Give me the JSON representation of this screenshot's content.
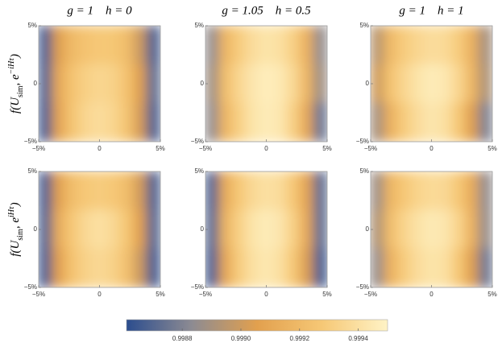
{
  "chart_data": [
    {
      "type": "heatmap",
      "title": "g = 1    h = 0",
      "ylabel": [
        "f(U",
        "sim",
        ", e",
        "−iHτ",
        ")"
      ],
      "xlim": [
        -5,
        5
      ],
      "ylim": [
        -5,
        5
      ],
      "xticks": [
        {
          "value": -5,
          "label": "−5%"
        },
        0,
        {
          "value": 5,
          "label": "5%"
        }
      ],
      "yticks": [
        {
          "value": -5,
          "label": "−5%"
        },
        0,
        {
          "value": 5,
          "label": "5%"
        }
      ],
      "z": [
        [
          0.99866,
          0.99905,
          0.9992,
          0.99925,
          0.99928,
          0.99927,
          0.99922,
          0.999,
          0.99868
        ],
        [
          0.99868,
          0.9991,
          0.99925,
          0.99932,
          0.99935,
          0.99933,
          0.99925,
          0.99905,
          0.99872
        ],
        [
          0.99866,
          0.99908,
          0.99926,
          0.99935,
          0.99938,
          0.99935,
          0.99926,
          0.99903,
          0.99868
        ]
      ]
    },
    {
      "type": "heatmap",
      "title": "g = 1.05    h = 0.5",
      "xlim": [
        -5,
        5
      ],
      "ylim": [
        -5,
        5
      ],
      "xticks": [
        {
          "value": -5,
          "label": "−5%"
        },
        0,
        {
          "value": 5,
          "label": "5%"
        }
      ],
      "yticks": [
        {
          "value": -5,
          "label": "−5%"
        },
        0,
        {
          "value": 5,
          "label": "5%"
        }
      ],
      "z": [
        [
          0.99885,
          0.99918,
          0.9993,
          0.99938,
          0.99942,
          0.9994,
          0.99932,
          0.99915,
          0.99885
        ],
        [
          0.99888,
          0.99922,
          0.99935,
          0.99943,
          0.99947,
          0.99945,
          0.99936,
          0.99918,
          0.99888
        ],
        [
          0.99885,
          0.99918,
          0.99932,
          0.99942,
          0.99946,
          0.99944,
          0.99932,
          0.9991,
          0.99875
        ]
      ]
    },
    {
      "type": "heatmap",
      "title": "g = 1    h = 1",
      "xlim": [
        -5,
        5
      ],
      "ylim": [
        -5,
        5
      ],
      "xticks": [
        {
          "value": -5,
          "label": "−5%"
        },
        0,
        {
          "value": 5,
          "label": "5%"
        }
      ],
      "yticks": [
        {
          "value": -5,
          "label": "−5%"
        },
        0,
        {
          "value": 5,
          "label": "5%"
        }
      ],
      "z": [
        [
          0.99895,
          0.9992,
          0.9993,
          0.99935,
          0.99938,
          0.99937,
          0.9993,
          0.99915,
          0.9989
        ],
        [
          0.999,
          0.99925,
          0.99935,
          0.99942,
          0.99946,
          0.99944,
          0.99935,
          0.99918,
          0.99892
        ],
        [
          0.9989,
          0.99915,
          0.9993,
          0.99938,
          0.99943,
          0.9994,
          0.99928,
          0.99905,
          0.9988
        ]
      ]
    },
    {
      "type": "heatmap",
      "ylabel": [
        "f(U",
        "sim",
        ", e",
        "iHτ",
        ")"
      ],
      "xlim": [
        -5,
        5
      ],
      "ylim": [
        -5,
        5
      ],
      "xticks": [
        {
          "value": -5,
          "label": "−5%"
        },
        0,
        {
          "value": 5,
          "label": "5%"
        }
      ],
      "yticks": [
        {
          "value": -5,
          "label": "−5%"
        },
        0,
        {
          "value": 5,
          "label": "5%"
        }
      ],
      "z": [
        [
          0.99866,
          0.99906,
          0.99922,
          0.99928,
          0.9993,
          0.99928,
          0.99922,
          0.99902,
          0.99868
        ],
        [
          0.99868,
          0.99912,
          0.99928,
          0.99936,
          0.9994,
          0.99936,
          0.99927,
          0.99906,
          0.9987
        ],
        [
          0.99866,
          0.99906,
          0.99925,
          0.99933,
          0.99936,
          0.99933,
          0.99924,
          0.999,
          0.99866
        ]
      ]
    },
    {
      "type": "heatmap",
      "xlim": [
        -5,
        5
      ],
      "ylim": [
        -5,
        5
      ],
      "xticks": [
        {
          "value": -5,
          "label": "−5%"
        },
        0,
        {
          "value": 5,
          "label": "5%"
        }
      ],
      "yticks": [
        {
          "value": -5,
          "label": "−5%"
        },
        0,
        {
          "value": 5,
          "label": "5%"
        }
      ],
      "z": [
        [
          0.99868,
          0.99912,
          0.99928,
          0.99936,
          0.9994,
          0.99938,
          0.99928,
          0.99908,
          0.99872
        ],
        [
          0.9987,
          0.99916,
          0.99932,
          0.99942,
          0.99946,
          0.99943,
          0.99932,
          0.9991,
          0.99872
        ],
        [
          0.99866,
          0.9991,
          0.9993,
          0.9994,
          0.99944,
          0.9994,
          0.99928,
          0.99904,
          0.99866
        ]
      ]
    },
    {
      "type": "heatmap",
      "xlim": [
        -5,
        5
      ],
      "ylim": [
        -5,
        5
      ],
      "xticks": [
        {
          "value": -5,
          "label": "−5%"
        },
        0,
        {
          "value": 5,
          "label": "5%"
        }
      ],
      "yticks": [
        {
          "value": -5,
          "label": "−5%"
        },
        0,
        {
          "value": 5,
          "label": "5%"
        }
      ],
      "z": [
        [
          0.99888,
          0.99918,
          0.99928,
          0.99934,
          0.99937,
          0.99936,
          0.99928,
          0.99912,
          0.99885
        ],
        [
          0.99892,
          0.99922,
          0.99934,
          0.99941,
          0.99945,
          0.99943,
          0.99934,
          0.99915,
          0.99886
        ],
        [
          0.99886,
          0.99915,
          0.9993,
          0.99938,
          0.99942,
          0.9994,
          0.99928,
          0.99905,
          0.99876
        ]
      ]
    }
  ],
  "colorbar": {
    "clim": [
      0.99861,
      0.9995
    ],
    "ticks": [
      0.9988,
      {
        "value": 0.999,
        "label": "0.9990"
      },
      0.9992,
      0.9994
    ],
    "colormap": [
      "#2c4d8e",
      "#8d8b92",
      "#e2a04e",
      "#f6c876",
      "#fff3c6"
    ]
  }
}
